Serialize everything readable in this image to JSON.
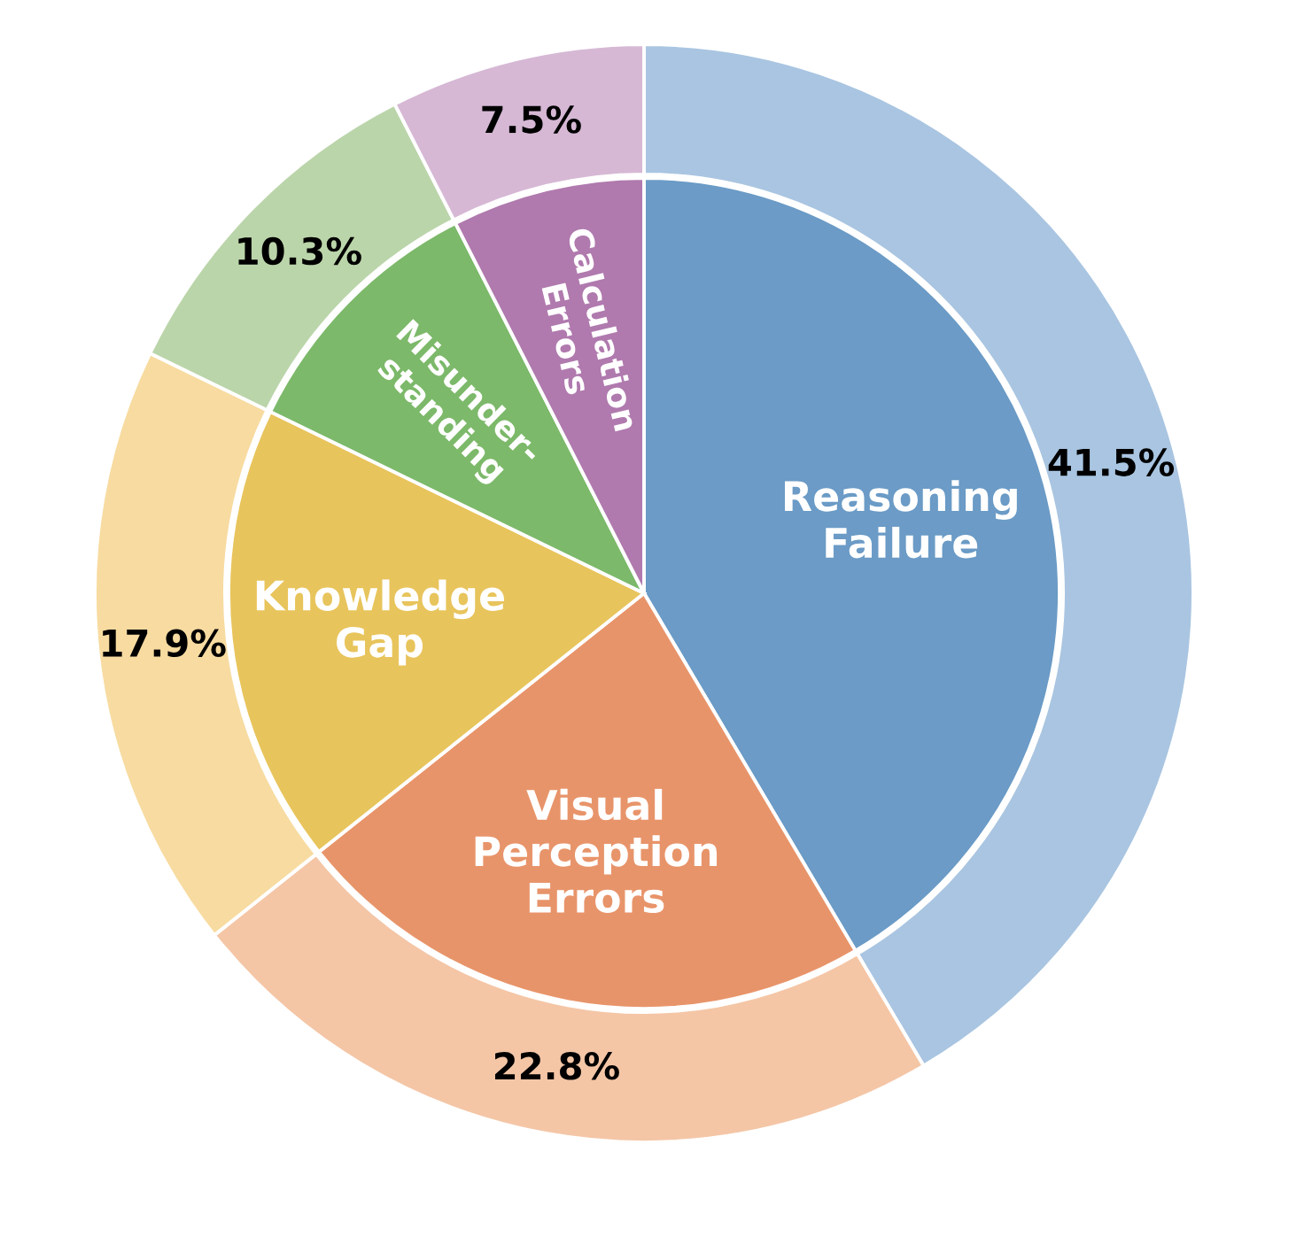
{
  "chart_data": {
    "type": "pie",
    "categories": [
      "Reasoning\nFailure",
      "Visual\nPerception\nErrors",
      "Knowledge\nGap",
      "Misunder-\nstanding",
      "Calculation\nErrors"
    ],
    "series": [
      {
        "type": "donut",
        "values": [
          41.5,
          22.8,
          17.9,
          10.3,
          7.5
        ],
        "colors": [
          "#a9c5e1",
          "#f4c6a6",
          "#f7dba0",
          "#bbd5aa",
          "#d6b8d5"
        ],
        "value_labels": [
          "41.5%",
          "22.8%",
          "17.9%",
          "10.3%",
          "7.5%"
        ]
      },
      {
        "values": [
          41.5,
          22.8,
          17.9,
          10.3,
          7.5
        ],
        "colors": [
          "#6b9bc6",
          "#e8946a",
          "#e8c45c",
          "#7cb96a",
          "#b07aae"
        ]
      }
    ]
  }
}
